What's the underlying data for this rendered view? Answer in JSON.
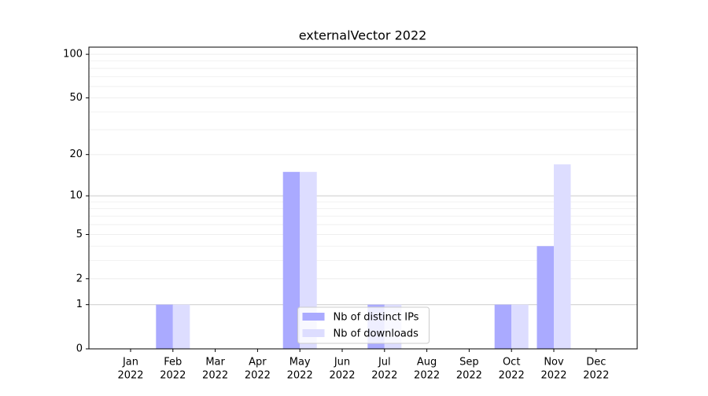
{
  "chart_data": {
    "type": "bar",
    "title": "externalVector 2022",
    "categories": [
      [
        "Jan",
        "2022"
      ],
      [
        "Feb",
        "2022"
      ],
      [
        "Mar",
        "2022"
      ],
      [
        "Apr",
        "2022"
      ],
      [
        "May",
        "2022"
      ],
      [
        "Jun",
        "2022"
      ],
      [
        "Jul",
        "2022"
      ],
      [
        "Aug",
        "2022"
      ],
      [
        "Sep",
        "2022"
      ],
      [
        "Oct",
        "2022"
      ],
      [
        "Nov",
        "2022"
      ],
      [
        "Dec",
        "2022"
      ]
    ],
    "series": [
      {
        "name": "Nb of distinct IPs",
        "color": "#aaaaff",
        "values": [
          0,
          1,
          0,
          0,
          15,
          0,
          1,
          0,
          0,
          1,
          4,
          0
        ]
      },
      {
        "name": "Nb of downloads",
        "color": "#ddddff",
        "values": [
          0,
          1,
          0,
          0,
          15,
          0,
          1,
          0,
          0,
          1,
          17,
          0
        ]
      }
    ],
    "yscale": "log1p",
    "ylim": [
      0,
      112
    ],
    "yticks": [
      0,
      1,
      2,
      5,
      10,
      20,
      50,
      100
    ],
    "minor_yticks": [
      3,
      4,
      6,
      7,
      8,
      9,
      30,
      40,
      60,
      70,
      80,
      90
    ],
    "grid": true,
    "legend": "lower center"
  }
}
